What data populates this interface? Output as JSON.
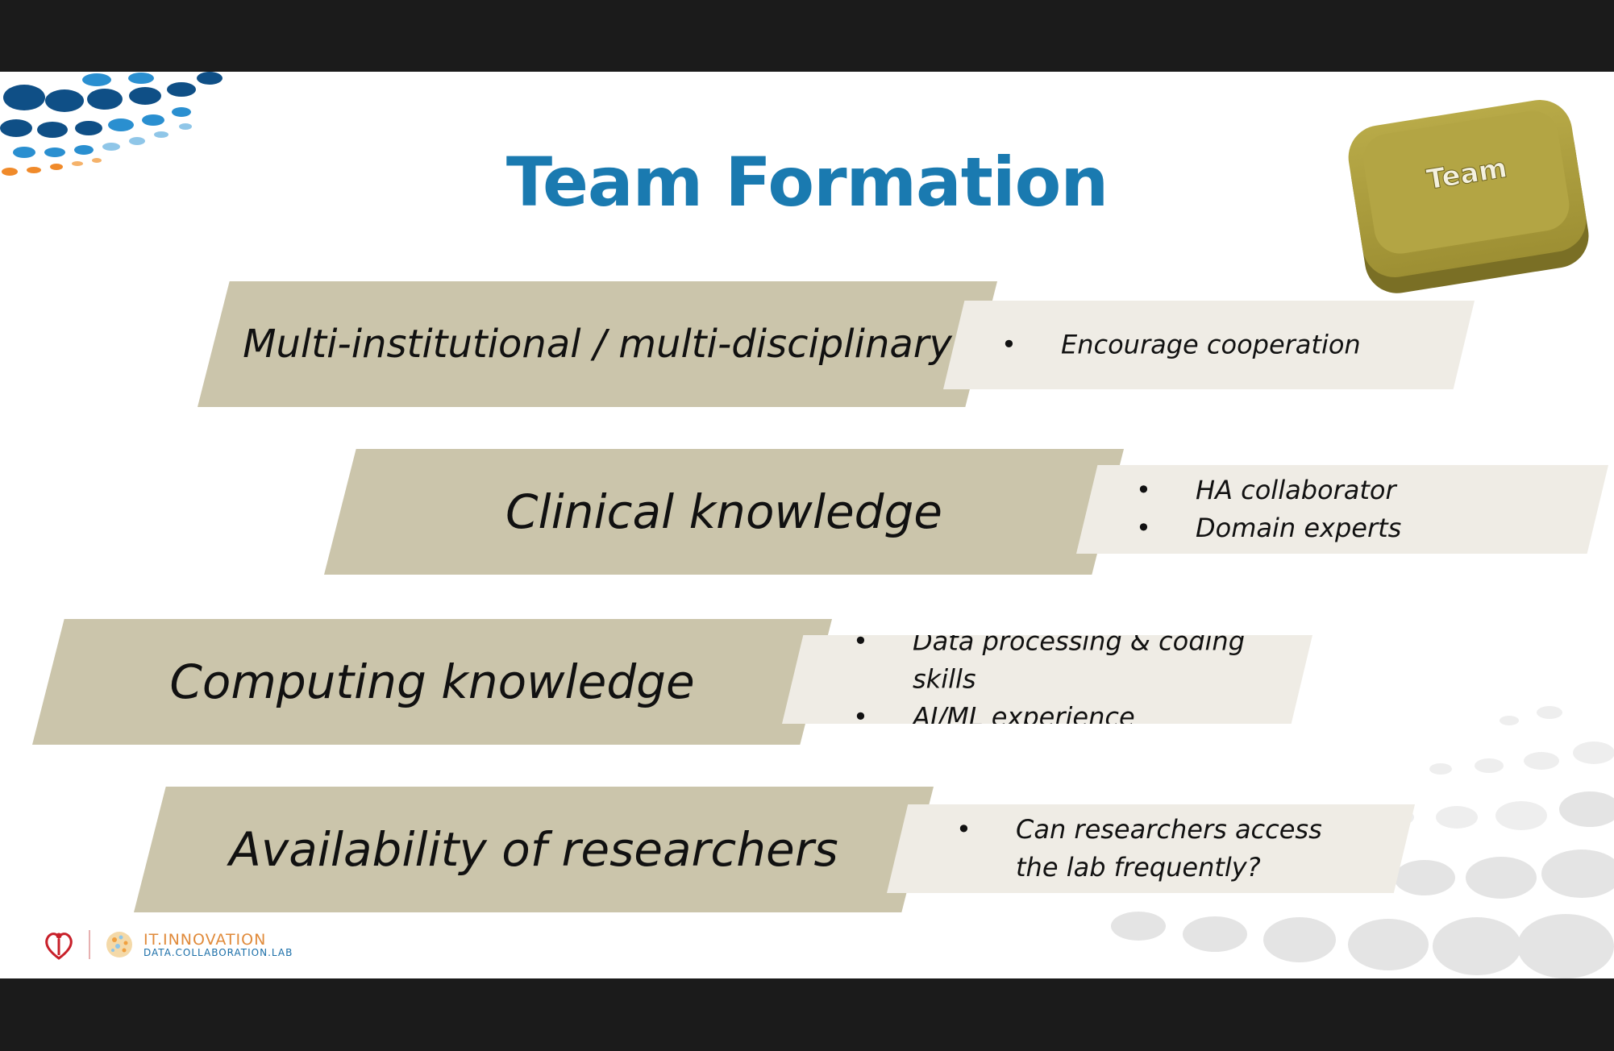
{
  "slide": {
    "title": "Team Formation",
    "key_label": "Team",
    "rows": [
      {
        "heading": "Multi-institutional / multi-disciplinary",
        "bullets": [
          "Encourage cooperation"
        ]
      },
      {
        "heading": "Clinical knowledge",
        "bullets": [
          "HA collaborator",
          "Domain experts"
        ]
      },
      {
        "heading": "Computing knowledge",
        "bullets": [
          "Data processing & coding skills",
          "AI/ML experience"
        ]
      },
      {
        "heading": "Availability of researchers",
        "bullets": [
          "Can researchers access the lab frequently?"
        ]
      }
    ],
    "footer": {
      "brand_line1": "IT.INNOVATION",
      "brand_line2": "DATA.COLLABORATION.LAB"
    }
  },
  "colors": {
    "title": "#1a7ab0",
    "band": "#cbc5ab",
    "note": "#efece5",
    "key": "#a8993e"
  },
  "icons": [
    "team-key-icon",
    "heart-logo-icon",
    "dots-decoration-icon"
  ]
}
